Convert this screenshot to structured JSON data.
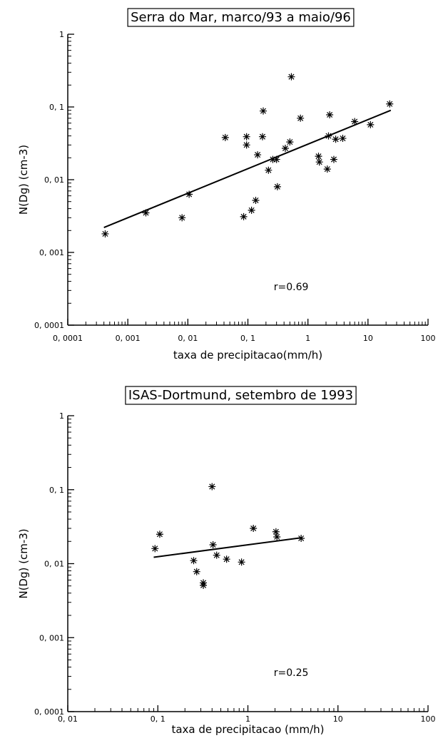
{
  "chart_data": [
    {
      "type": "scatter",
      "title": "Serra do Mar, marco/93 a maio/96",
      "xlabel": "taxa de precipitacao(mm/h)",
      "ylabel": "N(Dg) (cm-3)",
      "x_scale": "log",
      "y_scale": "log",
      "xlim": [
        0.0001,
        100
      ],
      "ylim": [
        0.0001,
        1
      ],
      "x_ticks": [
        0.0001,
        0.001,
        0.01,
        0.1,
        1,
        10,
        100
      ],
      "x_tick_labels": [
        "0, 0001",
        "0, 001",
        "0, 01",
        "0, 1",
        "1",
        "10",
        "100"
      ],
      "y_ticks": [
        0.0001,
        0.001,
        0.01,
        0.1,
        1
      ],
      "y_tick_labels": [
        "0, 0001",
        "0, 001",
        "0, 01",
        "0, 1",
        "1"
      ],
      "marker": "asterisk",
      "points": [
        {
          "x": 0.00042,
          "y": 0.0018
        },
        {
          "x": 0.002,
          "y": 0.0035
        },
        {
          "x": 0.008,
          "y": 0.003
        },
        {
          "x": 0.0105,
          "y": 0.0063
        },
        {
          "x": 0.042,
          "y": 0.038
        },
        {
          "x": 0.085,
          "y": 0.0031
        },
        {
          "x": 0.095,
          "y": 0.039
        },
        {
          "x": 0.095,
          "y": 0.03
        },
        {
          "x": 0.115,
          "y": 0.0038
        },
        {
          "x": 0.135,
          "y": 0.0052
        },
        {
          "x": 0.145,
          "y": 0.022
        },
        {
          "x": 0.175,
          "y": 0.039
        },
        {
          "x": 0.18,
          "y": 0.088
        },
        {
          "x": 0.22,
          "y": 0.0135
        },
        {
          "x": 0.26,
          "y": 0.019
        },
        {
          "x": 0.3,
          "y": 0.019
        },
        {
          "x": 0.31,
          "y": 0.008
        },
        {
          "x": 0.42,
          "y": 0.027
        },
        {
          "x": 0.5,
          "y": 0.033
        },
        {
          "x": 0.53,
          "y": 0.26
        },
        {
          "x": 0.75,
          "y": 0.07
        },
        {
          "x": 1.5,
          "y": 0.021
        },
        {
          "x": 1.55,
          "y": 0.0175
        },
        {
          "x": 2.1,
          "y": 0.014
        },
        {
          "x": 2.2,
          "y": 0.04
        },
        {
          "x": 2.3,
          "y": 0.078
        },
        {
          "x": 2.7,
          "y": 0.019
        },
        {
          "x": 2.9,
          "y": 0.036
        },
        {
          "x": 3.8,
          "y": 0.037
        },
        {
          "x": 6,
          "y": 0.063
        },
        {
          "x": 11,
          "y": 0.057
        },
        {
          "x": 23,
          "y": 0.11
        }
      ],
      "fit_line": {
        "x": [
          0.0004,
          24
        ],
        "y": [
          0.0022,
          0.09
        ]
      },
      "annotation": "r=0.69"
    },
    {
      "type": "scatter",
      "title": "ISAS-Dortmund, setembro de 1993",
      "xlabel": "taxa de precipitacao (mm/h)",
      "ylabel": "N(Dg) (cm-3)",
      "x_scale": "log",
      "y_scale": "log",
      "xlim": [
        0.01,
        100
      ],
      "ylim": [
        0.0001,
        1
      ],
      "x_ticks": [
        0.01,
        0.1,
        1,
        10,
        100
      ],
      "x_tick_labels": [
        "0, 01",
        "0, 1",
        "1",
        "10",
        "100"
      ],
      "y_ticks": [
        0.0001,
        0.001,
        0.01,
        0.1,
        1
      ],
      "y_tick_labels": [
        "0, 0001",
        "0, 001",
        "0, 01",
        "0, 1",
        "1"
      ],
      "marker": "asterisk",
      "points": [
        {
          "x": 0.093,
          "y": 0.016
        },
        {
          "x": 0.105,
          "y": 0.025
        },
        {
          "x": 0.25,
          "y": 0.011
        },
        {
          "x": 0.27,
          "y": 0.0078
        },
        {
          "x": 0.32,
          "y": 0.0055
        },
        {
          "x": 0.32,
          "y": 0.0051
        },
        {
          "x": 0.4,
          "y": 0.11
        },
        {
          "x": 0.41,
          "y": 0.018
        },
        {
          "x": 0.45,
          "y": 0.013
        },
        {
          "x": 0.58,
          "y": 0.0115
        },
        {
          "x": 0.85,
          "y": 0.0105
        },
        {
          "x": 1.15,
          "y": 0.03
        },
        {
          "x": 2.05,
          "y": 0.027
        },
        {
          "x": 2.1,
          "y": 0.023
        },
        {
          "x": 3.9,
          "y": 0.022
        }
      ],
      "fit_line": {
        "x": [
          0.09,
          4
        ],
        "y": [
          0.0122,
          0.0225
        ]
      },
      "annotation": "r=0.25"
    }
  ]
}
